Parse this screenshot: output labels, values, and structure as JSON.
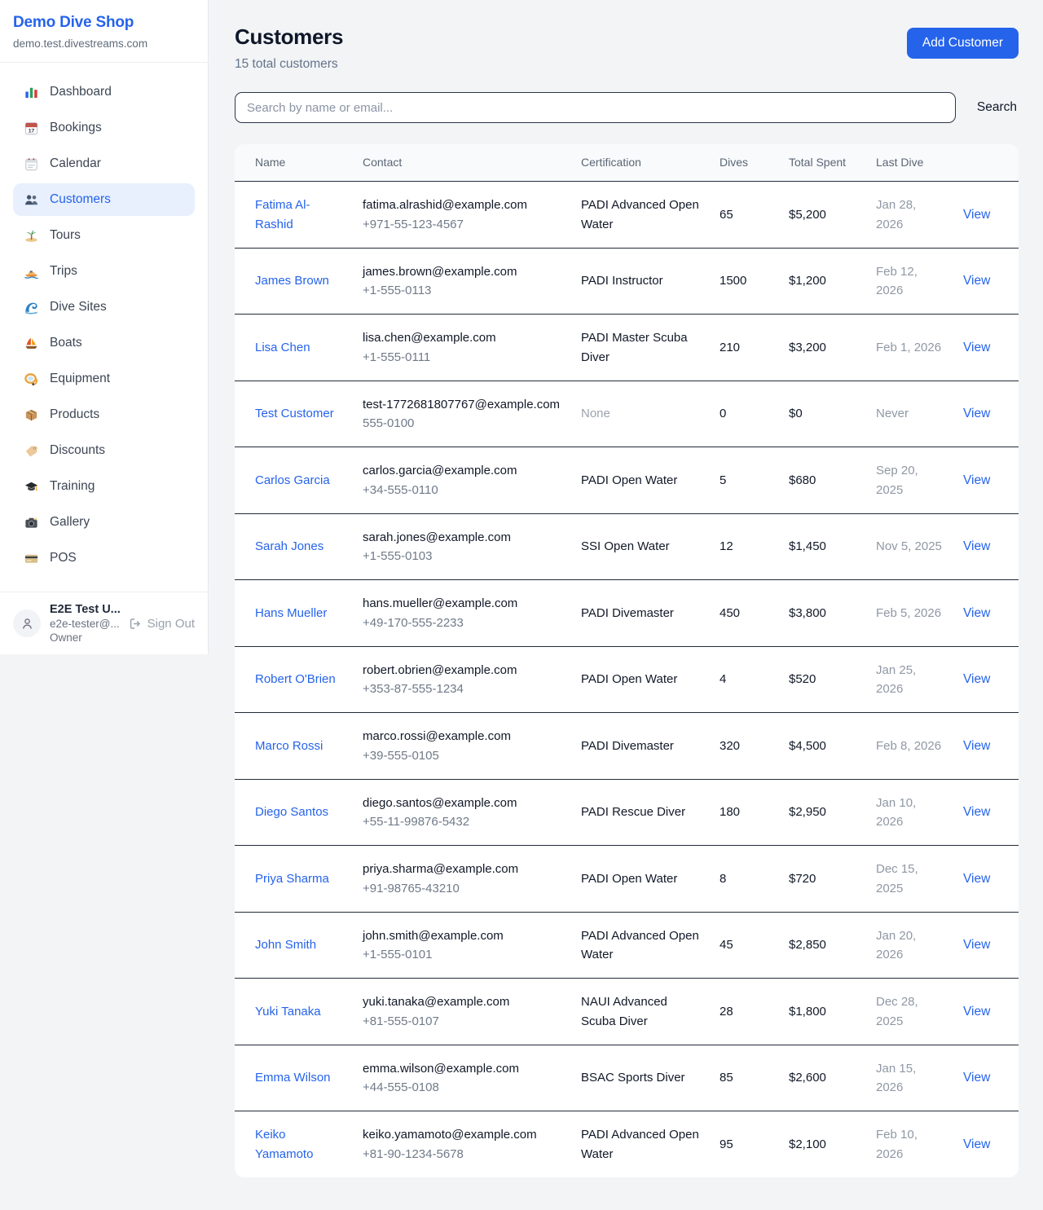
{
  "sidebar": {
    "brand": {
      "title": "Demo Dive Shop",
      "subtitle": "demo.test.divestreams.com"
    },
    "items": [
      {
        "id": "dashboard",
        "icon": "dashboard-icon",
        "label": "Dashboard",
        "active": false
      },
      {
        "id": "bookings",
        "icon": "bookings-icon",
        "label": "Bookings",
        "active": false
      },
      {
        "id": "calendar",
        "icon": "calendar-icon",
        "label": "Calendar",
        "active": false
      },
      {
        "id": "customers",
        "icon": "customers-icon",
        "label": "Customers",
        "active": true
      },
      {
        "id": "tours",
        "icon": "tours-icon",
        "label": "Tours",
        "active": false
      },
      {
        "id": "trips",
        "icon": "trips-icon",
        "label": "Trips",
        "active": false
      },
      {
        "id": "dive-sites",
        "icon": "dive-sites-icon",
        "label": "Dive Sites",
        "active": false
      },
      {
        "id": "boats",
        "icon": "boats-icon",
        "label": "Boats",
        "active": false
      },
      {
        "id": "equipment",
        "icon": "equipment-icon",
        "label": "Equipment",
        "active": false
      },
      {
        "id": "products",
        "icon": "products-icon",
        "label": "Products",
        "active": false
      },
      {
        "id": "discounts",
        "icon": "discounts-icon",
        "label": "Discounts",
        "active": false
      },
      {
        "id": "training",
        "icon": "training-icon",
        "label": "Training",
        "active": false
      },
      {
        "id": "gallery",
        "icon": "gallery-icon",
        "label": "Gallery",
        "active": false
      },
      {
        "id": "pos",
        "icon": "pos-icon",
        "label": "POS",
        "active": false
      }
    ],
    "user": {
      "name": "E2E Test U...",
      "email": "e2e-tester@...",
      "role": "Owner",
      "sign_out_label": "Sign Out"
    }
  },
  "header": {
    "title": "Customers",
    "subtitle": "15 total customers",
    "add_button_label": "Add Customer"
  },
  "search": {
    "placeholder": "Search by name or email...",
    "value": "",
    "button_label": "Search"
  },
  "table": {
    "columns": [
      "Name",
      "Contact",
      "Certification",
      "Dives",
      "Total Spent",
      "Last Dive",
      ""
    ],
    "view_label": "View",
    "rows": [
      {
        "name": "Fatima Al-Rashid",
        "email": "fatima.alrashid@example.com",
        "phone": "+971-55-123-4567",
        "certification": "PADI Advanced Open Water",
        "dives": "65",
        "total_spent": "$5,200",
        "last_dive": "Jan 28, 2026"
      },
      {
        "name": "James Brown",
        "email": "james.brown@example.com",
        "phone": "+1-555-0113",
        "certification": "PADI Instructor",
        "dives": "1500",
        "total_spent": "$1,200",
        "last_dive": "Feb 12, 2026"
      },
      {
        "name": "Lisa Chen",
        "email": "lisa.chen@example.com",
        "phone": "+1-555-0111",
        "certification": "PADI Master Scuba Diver",
        "dives": "210",
        "total_spent": "$3,200",
        "last_dive": "Feb 1, 2026"
      },
      {
        "name": "Test Customer",
        "email": "test-1772681807767@example.com",
        "phone": "555-0100",
        "certification": "None",
        "dives": "0",
        "total_spent": "$0",
        "last_dive": "Never"
      },
      {
        "name": "Carlos Garcia",
        "email": "carlos.garcia@example.com",
        "phone": "+34-555-0110",
        "certification": "PADI Open Water",
        "dives": "5",
        "total_spent": "$680",
        "last_dive": "Sep 20, 2025"
      },
      {
        "name": "Sarah Jones",
        "email": "sarah.jones@example.com",
        "phone": "+1-555-0103",
        "certification": "SSI Open Water",
        "dives": "12",
        "total_spent": "$1,450",
        "last_dive": "Nov 5, 2025"
      },
      {
        "name": "Hans Mueller",
        "email": "hans.mueller@example.com",
        "phone": "+49-170-555-2233",
        "certification": "PADI Divemaster",
        "dives": "450",
        "total_spent": "$3,800",
        "last_dive": "Feb 5, 2026"
      },
      {
        "name": "Robert O'Brien",
        "email": "robert.obrien@example.com",
        "phone": "+353-87-555-1234",
        "certification": "PADI Open Water",
        "dives": "4",
        "total_spent": "$520",
        "last_dive": "Jan 25, 2026"
      },
      {
        "name": "Marco Rossi",
        "email": "marco.rossi@example.com",
        "phone": "+39-555-0105",
        "certification": "PADI Divemaster",
        "dives": "320",
        "total_spent": "$4,500",
        "last_dive": "Feb 8, 2026"
      },
      {
        "name": "Diego Santos",
        "email": "diego.santos@example.com",
        "phone": "+55-11-99876-5432",
        "certification": "PADI Rescue Diver",
        "dives": "180",
        "total_spent": "$2,950",
        "last_dive": "Jan 10, 2026"
      },
      {
        "name": "Priya Sharma",
        "email": "priya.sharma@example.com",
        "phone": "+91-98765-43210",
        "certification": "PADI Open Water",
        "dives": "8",
        "total_spent": "$720",
        "last_dive": "Dec 15, 2025"
      },
      {
        "name": "John Smith",
        "email": "john.smith@example.com",
        "phone": "+1-555-0101",
        "certification": "PADI Advanced Open Water",
        "dives": "45",
        "total_spent": "$2,850",
        "last_dive": "Jan 20, 2026"
      },
      {
        "name": "Yuki Tanaka",
        "email": "yuki.tanaka@example.com",
        "phone": "+81-555-0107",
        "certification": "NAUI Advanced Scuba Diver",
        "dives": "28",
        "total_spent": "$1,800",
        "last_dive": "Dec 28, 2025"
      },
      {
        "name": "Emma Wilson",
        "email": "emma.wilson@example.com",
        "phone": "+44-555-0108",
        "certification": "BSAC Sports Diver",
        "dives": "85",
        "total_spent": "$2,600",
        "last_dive": "Jan 15, 2026"
      },
      {
        "name": "Keiko Yamamoto",
        "email": "keiko.yamamoto@example.com",
        "phone": "+81-90-1234-5678",
        "certification": "PADI Advanced Open Water",
        "dives": "95",
        "total_spent": "$2,100",
        "last_dive": "Feb 10, 2026"
      }
    ]
  },
  "colors": {
    "accent": "#2563eb",
    "nav_active_bg": "#e8f0fd",
    "page_bg": "#f2f4f6",
    "table_header_bg": "#f8fafc",
    "row_border": "#222b3a",
    "muted_text": "#9ca3af"
  }
}
